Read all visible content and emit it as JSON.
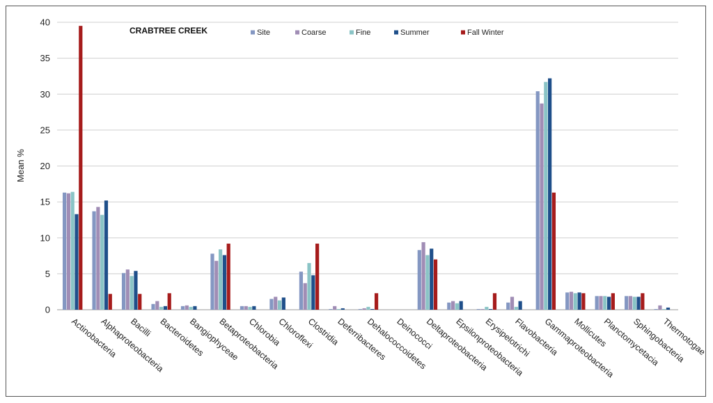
{
  "chart_data": {
    "type": "bar",
    "title": "CRABTREE CREEK",
    "xlabel": "",
    "ylabel": "Mean %",
    "ylim": [
      0,
      40
    ],
    "yticks": [
      0,
      5,
      10,
      15,
      20,
      25,
      30,
      35,
      40
    ],
    "grid": true,
    "legend_position": "top",
    "categories": [
      "Actinobacteria",
      "Alphaproteobacteria",
      "Bacilli",
      "Bacteroidetes",
      "Bangiophyceae",
      "Betaproteobacteria",
      "Chlorobia",
      "Chloroflexi",
      "Clostridia",
      "Deferribacteres",
      "Dehalococcoidetes",
      "Deinococci",
      "Deltaproteobacteria",
      "Epsilonproteobacteria",
      "Erysipelotrichi",
      "Flavobacteria",
      "Gammaproteobacteria",
      "Mollicutes",
      "Planctomycetacia",
      "Sphingobacteria",
      "Thermotogae"
    ],
    "series": [
      {
        "name": "Site",
        "color": "#8497c2",
        "values": [
          16.3,
          13.7,
          5.1,
          0.8,
          0.5,
          7.8,
          0.5,
          1.5,
          5.3,
          0.1,
          0.1,
          0,
          8.3,
          1.0,
          0.1,
          1.0,
          30.4,
          2.4,
          1.9,
          1.9,
          0.1
        ]
      },
      {
        "name": "Coarse",
        "color": "#a08db5",
        "values": [
          16.2,
          14.3,
          5.6,
          1.2,
          0.6,
          6.8,
          0.5,
          1.8,
          3.7,
          0.5,
          0.2,
          0,
          9.4,
          1.2,
          0.1,
          1.8,
          28.7,
          2.5,
          1.9,
          1.9,
          0.6
        ]
      },
      {
        "name": "Fine",
        "color": "#8ac4c6",
        "values": [
          16.4,
          13.2,
          4.7,
          0.4,
          0.4,
          8.4,
          0.4,
          1.3,
          6.5,
          0.1,
          0.4,
          0,
          7.6,
          0.9,
          0.4,
          0.4,
          31.7,
          2.3,
          1.9,
          1.8,
          0.1
        ]
      },
      {
        "name": "Summer",
        "color": "#1f4f8a",
        "values": [
          13.3,
          15.2,
          5.4,
          0.5,
          0.5,
          7.6,
          0.5,
          1.7,
          4.8,
          0.2,
          0.1,
          0,
          8.5,
          1.2,
          0.1,
          1.2,
          32.2,
          2.4,
          1.8,
          1.8,
          0.3
        ]
      },
      {
        "name": "Fall Winter",
        "color": "#a61c1c",
        "values": [
          39.5,
          2.2,
          2.2,
          2.3,
          0,
          9.2,
          0,
          0,
          9.2,
          0,
          2.3,
          0,
          7.0,
          0,
          2.3,
          0,
          16.3,
          2.3,
          2.3,
          2.3,
          0
        ]
      }
    ]
  }
}
